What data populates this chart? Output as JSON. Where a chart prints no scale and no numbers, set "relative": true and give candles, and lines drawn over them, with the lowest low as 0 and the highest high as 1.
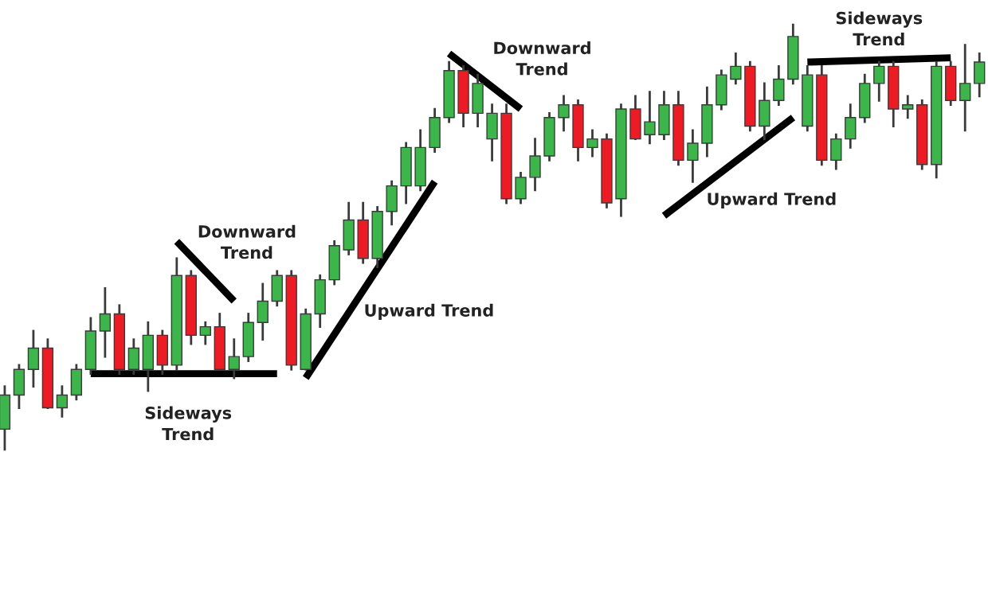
{
  "chart_data": {
    "type": "candlestick",
    "relative": true,
    "categories": [
      null,
      null,
      null,
      null,
      null,
      null,
      null,
      null,
      null,
      null,
      null,
      null,
      null,
      null,
      null,
      null,
      null,
      null,
      null,
      null,
      null,
      null,
      null,
      null,
      null,
      null,
      null,
      null,
      null,
      null,
      null,
      null,
      null,
      null,
      null,
      null,
      null,
      null,
      null,
      null,
      null,
      null,
      null,
      null,
      null,
      null,
      null,
      null,
      null,
      null,
      null,
      null,
      null,
      null,
      null,
      null,
      null,
      null,
      null,
      null,
      null,
      null,
      null,
      null,
      null,
      null,
      null,
      null,
      null
    ],
    "ohlc": [
      [
        0.05,
        0.15,
        0,
        0.13
      ],
      [
        0.13,
        0.2,
        0.1,
        0.19
      ],
      [
        0.19,
        0.28,
        0.15,
        0.24
      ],
      [
        0.24,
        0.26,
        0.1,
        0.1
      ],
      [
        0.1,
        0.15,
        0.08,
        0.13
      ],
      [
        0.13,
        0.2,
        0.12,
        0.19
      ],
      [
        0.19,
        0.31,
        0.18,
        0.28
      ],
      [
        0.28,
        0.38,
        0.22,
        0.32
      ],
      [
        0.32,
        0.34,
        0.18,
        0.19
      ],
      [
        0.19,
        0.26,
        0.18,
        0.24
      ],
      [
        0.19,
        0.3,
        0.14,
        0.27
      ],
      [
        0.27,
        0.28,
        0.18,
        0.2
      ],
      [
        0.2,
        0.45,
        0.19,
        0.41
      ],
      [
        0.41,
        0.42,
        0.25,
        0.27
      ],
      [
        0.27,
        0.3,
        0.25,
        0.29
      ],
      [
        0.29,
        0.32,
        0.19,
        0.19
      ],
      [
        0.19,
        0.26,
        0.17,
        0.22
      ],
      [
        0.22,
        0.32,
        0.21,
        0.3
      ],
      [
        0.3,
        0.39,
        0.26,
        0.35
      ],
      [
        0.35,
        0.42,
        0.34,
        0.41
      ],
      [
        0.41,
        0.42,
        0.19,
        0.2
      ],
      [
        0.19,
        0.33,
        0.19,
        0.32
      ],
      [
        0.32,
        0.41,
        0.29,
        0.4
      ],
      [
        0.4,
        0.49,
        0.39,
        0.48
      ],
      [
        0.47,
        0.58,
        0.46,
        0.54
      ],
      [
        0.54,
        0.58,
        0.44,
        0.45
      ],
      [
        0.45,
        0.57,
        0.43,
        0.56
      ],
      [
        0.56,
        0.63,
        0.53,
        0.62
      ],
      [
        0.62,
        0.72,
        0.58,
        0.71
      ],
      [
        0.62,
        0.75,
        0.61,
        0.71
      ],
      [
        0.71,
        0.8,
        0.7,
        0.78
      ],
      [
        0.78,
        0.91,
        0.77,
        0.89
      ],
      [
        0.89,
        0.9,
        0.76,
        0.79
      ],
      [
        0.79,
        0.88,
        0.76,
        0.86
      ],
      [
        0.73,
        0.81,
        0.68,
        0.79
      ],
      [
        0.79,
        0.81,
        0.58,
        0.59
      ],
      [
        0.59,
        0.65,
        0.58,
        0.64
      ],
      [
        0.64,
        0.73,
        0.61,
        0.69
      ],
      [
        0.69,
        0.79,
        0.68,
        0.78
      ],
      [
        0.78,
        0.83,
        0.75,
        0.81
      ],
      [
        0.81,
        0.82,
        0.68,
        0.71
      ],
      [
        0.71,
        0.75,
        0.69,
        0.73
      ],
      [
        0.73,
        0.74,
        0.57,
        0.58
      ],
      [
        0.59,
        0.81,
        0.55,
        0.8
      ],
      [
        0.8,
        0.83,
        0.73,
        0.73
      ],
      [
        0.74,
        0.84,
        0.72,
        0.77
      ],
      [
        0.74,
        0.84,
        0.73,
        0.81
      ],
      [
        0.81,
        0.84,
        0.67,
        0.68
      ],
      [
        0.68,
        0.75,
        0.63,
        0.72
      ],
      [
        0.72,
        0.85,
        0.69,
        0.81
      ],
      [
        0.81,
        0.89,
        0.8,
        0.88
      ],
      [
        0.87,
        0.93,
        0.86,
        0.9
      ],
      [
        0.9,
        0.91,
        0.75,
        0.76
      ],
      [
        0.76,
        0.86,
        0.73,
        0.82
      ],
      [
        0.82,
        0.9,
        0.81,
        0.87
      ],
      [
        0.87,
        1.0,
        0.86,
        0.97
      ],
      [
        0.76,
        0.9,
        0.75,
        0.88
      ],
      [
        0.88,
        0.9,
        0.67,
        0.68
      ],
      [
        0.68,
        0.74,
        0.66,
        0.73
      ],
      [
        0.73,
        0.81,
        0.71,
        0.78
      ],
      [
        0.78,
        0.88,
        0.77,
        0.86
      ],
      [
        0.86,
        0.91,
        0.82,
        0.9
      ],
      [
        0.9,
        0.91,
        0.76,
        0.8
      ],
      [
        0.8,
        0.83,
        0.78,
        0.81
      ],
      [
        0.81,
        0.82,
        0.66,
        0.67
      ],
      [
        0.67,
        0.91,
        0.64,
        0.9
      ],
      [
        0.9,
        0.91,
        0.81,
        0.82
      ],
      [
        0.82,
        0.95,
        0.75,
        0.86
      ],
      [
        0.86,
        0.93,
        0.83,
        0.91
      ]
    ],
    "colors": [
      "#3cb54a",
      "#3cb54a",
      "#3cb54a",
      "#ed1c24",
      "#3cb54a",
      "#3cb54a",
      "#3cb54a",
      "#3cb54a",
      "#ed1c24",
      "#3cb54a",
      "#3cb54a",
      "#ed1c24",
      "#3cb54a",
      "#ed1c24",
      "#3cb54a",
      "#ed1c24",
      "#3cb54a",
      "#3cb54a",
      "#3cb54a",
      "#3cb54a",
      "#ed1c24",
      "#3cb54a",
      "#3cb54a",
      "#3cb54a",
      "#3cb54a",
      "#ed1c24",
      "#3cb54a",
      "#3cb54a",
      "#3cb54a",
      "#3cb54a",
      "#3cb54a",
      "#3cb54a",
      "#ed1c24",
      "#3cb54a",
      "#3cb54a",
      "#ed1c24",
      "#3cb54a",
      "#3cb54a",
      "#3cb54a",
      "#3cb54a",
      "#ed1c24",
      "#3cb54a",
      "#ed1c24",
      "#3cb54a",
      "#ed1c24",
      "#3cb54a",
      "#3cb54a",
      "#ed1c24",
      "#3cb54a",
      "#3cb54a",
      "#3cb54a",
      "#3cb54a",
      "#ed1c24",
      "#3cb54a",
      "#3cb54a",
      "#3cb54a",
      "#3cb54a",
      "#ed1c24",
      "#3cb54a",
      "#3cb54a",
      "#3cb54a",
      "#3cb54a",
      "#ed1c24",
      "#3cb54a",
      "#ed1c24",
      "#3cb54a",
      "#ed1c24",
      "#3cb54a",
      "#3cb54a"
    ],
    "series": [
      {
        "type": "line",
        "color": "#000000",
        "values": [
          null,
          null,
          null,
          null,
          null,
          null,
          0.18,
          null,
          null,
          null,
          null,
          null,
          null,
          null,
          null,
          null,
          null,
          null,
          null,
          0.18,
          null,
          null,
          null,
          null,
          null,
          null,
          null,
          null,
          null,
          null,
          null,
          null,
          null,
          null,
          null,
          null,
          null,
          null,
          null,
          null,
          null,
          null,
          null,
          null,
          null,
          null,
          null,
          null,
          null,
          null,
          null,
          null,
          null,
          null,
          null,
          null,
          null,
          null,
          null,
          null,
          null,
          null,
          null,
          null,
          null,
          null,
          null,
          null,
          null
        ]
      },
      {
        "type": "line",
        "color": "#000000",
        "values": [
          null,
          null,
          null,
          null,
          null,
          null,
          null,
          null,
          null,
          null,
          null,
          null,
          0.49,
          null,
          null,
          null,
          0.35,
          null,
          null,
          null,
          null,
          null,
          null,
          null,
          null,
          null,
          null,
          null,
          null,
          null,
          null,
          null,
          null,
          null,
          null,
          null,
          null,
          null,
          null,
          null,
          null,
          null,
          null,
          null,
          null,
          null,
          null,
          null,
          null,
          null,
          null,
          null,
          null,
          null,
          null,
          null,
          null,
          null,
          null,
          null,
          null,
          null,
          null,
          null,
          null,
          null,
          null,
          null,
          null
        ]
      },
      {
        "type": "line",
        "color": "#000000",
        "values": [
          null,
          null,
          null,
          null,
          null,
          null,
          null,
          null,
          null,
          null,
          null,
          null,
          null,
          null,
          null,
          null,
          null,
          null,
          null,
          null,
          null,
          0.17,
          null,
          null,
          null,
          null,
          null,
          null,
          null,
          null,
          0.63,
          null,
          null,
          null,
          null,
          null,
          null,
          null,
          null,
          null,
          null,
          null,
          null,
          null,
          null,
          null,
          null,
          null,
          null,
          null,
          null,
          null,
          null,
          null,
          null,
          null,
          null,
          null,
          null,
          null,
          null,
          null,
          null,
          null,
          null,
          null,
          null,
          null,
          null
        ]
      },
      {
        "type": "line",
        "color": "#000000",
        "values": [
          null,
          null,
          null,
          null,
          null,
          null,
          null,
          null,
          null,
          null,
          null,
          null,
          null,
          null,
          null,
          null,
          null,
          null,
          null,
          null,
          null,
          null,
          null,
          null,
          null,
          null,
          null,
          null,
          null,
          null,
          null,
          0.93,
          null,
          null,
          null,
          null,
          0.8,
          null,
          null,
          null,
          null,
          null,
          null,
          null,
          null,
          null,
          null,
          null,
          null,
          null,
          null,
          null,
          null,
          null,
          null,
          null,
          null,
          null,
          null,
          null,
          null,
          null,
          null,
          null,
          null,
          null,
          null,
          null,
          null
        ]
      },
      {
        "type": "line",
        "color": "#000000",
        "values": [
          null,
          null,
          null,
          null,
          null,
          null,
          null,
          null,
          null,
          null,
          null,
          null,
          null,
          null,
          null,
          null,
          null,
          null,
          null,
          null,
          null,
          null,
          null,
          null,
          null,
          null,
          null,
          null,
          null,
          null,
          null,
          null,
          null,
          null,
          null,
          null,
          null,
          null,
          null,
          null,
          null,
          null,
          null,
          null,
          null,
          null,
          0.55,
          null,
          null,
          null,
          null,
          null,
          null,
          null,
          null,
          0.78,
          null,
          null,
          null,
          null,
          null,
          null,
          null,
          null,
          null,
          null,
          null,
          null,
          null
        ]
      },
      {
        "type": "line",
        "color": "#000000",
        "values": [
          null,
          null,
          null,
          null,
          null,
          null,
          null,
          null,
          null,
          null,
          null,
          null,
          null,
          null,
          null,
          null,
          null,
          null,
          null,
          null,
          null,
          null,
          null,
          null,
          null,
          null,
          null,
          null,
          null,
          null,
          null,
          null,
          null,
          null,
          null,
          null,
          null,
          null,
          null,
          null,
          null,
          null,
          null,
          null,
          null,
          null,
          null,
          null,
          null,
          null,
          null,
          null,
          null,
          null,
          null,
          null,
          0.91,
          null,
          null,
          null,
          null,
          null,
          null,
          null,
          null,
          null,
          0.92,
          null,
          null
        ]
      }
    ],
    "annotations": [
      "Downward\nTrend",
      "Sideways\nTrend",
      "Upward Trend",
      "Downward\nTrend",
      "Upward Trend",
      "Sideways\nTrend"
    ]
  }
}
